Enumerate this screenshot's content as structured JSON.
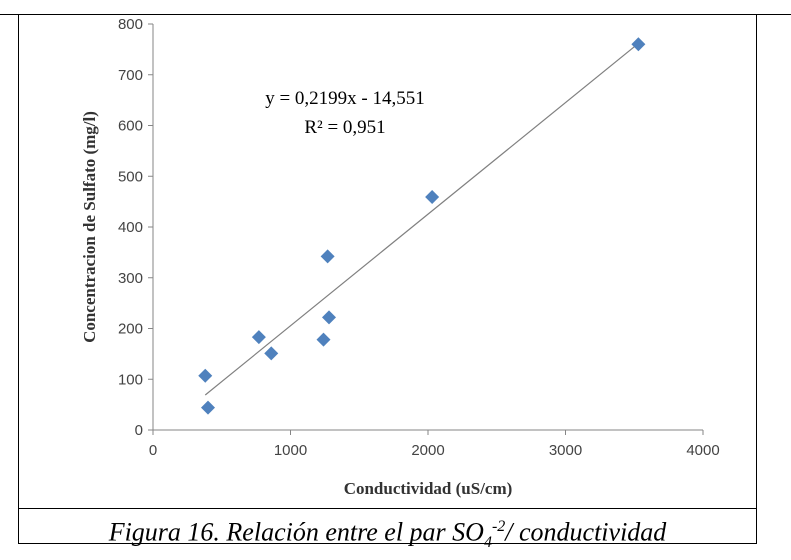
{
  "chart_data": {
    "type": "scatter",
    "xlabel": "Conductividad (uS/cm)",
    "ylabel": "Concentracion de Sulfato (mg/l)",
    "xlim": [
      0,
      4000
    ],
    "ylim": [
      0,
      800
    ],
    "x_ticks": [
      "0",
      "1000",
      "2000",
      "3000",
      "4000"
    ],
    "y_ticks": [
      "0",
      "100",
      "200",
      "300",
      "400",
      "500",
      "600",
      "700",
      "800"
    ],
    "grid": false,
    "legend": "none",
    "marker_color": "#4f81bd",
    "trendline_color": "#808080",
    "points": [
      {
        "x": 380,
        "y": 107
      },
      {
        "x": 400,
        "y": 44
      },
      {
        "x": 770,
        "y": 183
      },
      {
        "x": 860,
        "y": 151
      },
      {
        "x": 1240,
        "y": 178
      },
      {
        "x": 1270,
        "y": 342
      },
      {
        "x": 1280,
        "y": 222
      },
      {
        "x": 2030,
        "y": 459
      },
      {
        "x": 3530,
        "y": 760
      }
    ],
    "trendline": {
      "slope": 0.2199,
      "intercept": -14.551,
      "x_range": [
        380,
        3530
      ],
      "equation": "y = 0,2199x - 14,551",
      "r_squared": "R² = 0,951"
    }
  },
  "caption": {
    "prefix": "Figura 16. Relación entre el par SO",
    "sub": "4",
    "sup": "-2",
    "suffix": "/ conductividad"
  }
}
